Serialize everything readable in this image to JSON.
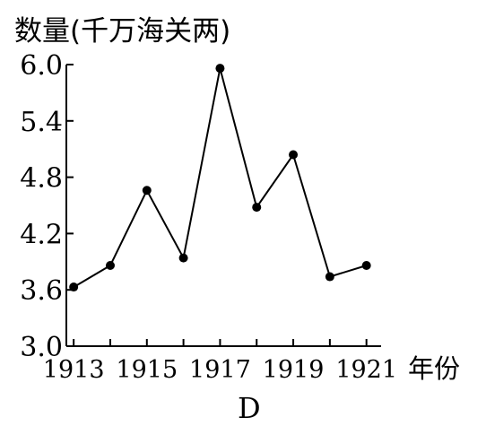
{
  "chart_data": {
    "type": "line",
    "title": "",
    "ylabel": "数量(千万海关两)",
    "xlabel": "年份",
    "caption": "D",
    "x": [
      1913,
      1914,
      1915,
      1916,
      1917,
      1918,
      1919,
      1920,
      1921
    ],
    "xtick_labels": [
      "1913",
      "1915",
      "1917",
      "1919",
      "1921"
    ],
    "ytick_labels": [
      "6.0",
      "5.4",
      "4.8",
      "4.2",
      "3.6",
      "3.0"
    ],
    "series": [
      {
        "values": [
          3.63,
          3.86,
          4.66,
          3.94,
          5.96,
          4.48,
          5.04,
          3.74,
          3.86
        ]
      }
    ],
    "ylim": [
      3.0,
      6.0
    ],
    "xlim": [
      1912.8,
      1921.4
    ],
    "grid": false,
    "legend": "none"
  }
}
